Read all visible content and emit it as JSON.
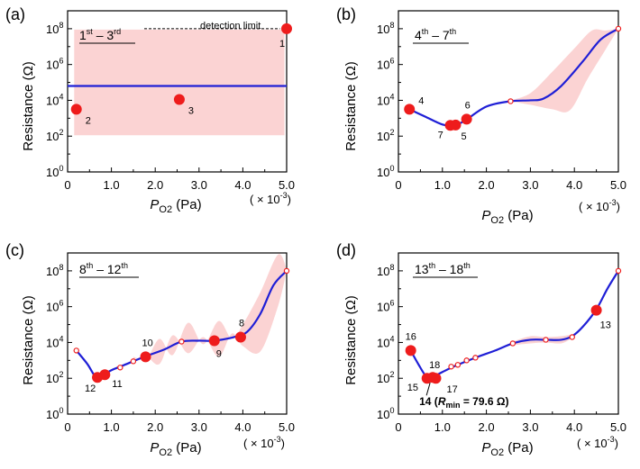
{
  "figure": {
    "ylabel_main": "Resistance (",
    "ylabel_omega": "Ω",
    "ylabel_close": ")",
    "xlabel_p": "P",
    "xlabel_sub": "O2",
    "xlabel_unit": " (Pa)",
    "xmult_prefix": "( × 10",
    "xmult_exp": "-3",
    "xmult_suffix": ")",
    "colors": {
      "curve": "#1f1fd6",
      "band": "#fbd3d3",
      "point": "#ee1c1c",
      "axis": "#000000"
    }
  },
  "chart_data": [
    {
      "type": "scatter",
      "panel": "(a)",
      "title_parts": [
        "1",
        "st",
        " – 3",
        "rd"
      ],
      "xlim": [
        0,
        5.0
      ],
      "ylim_log10": [
        0,
        9
      ],
      "xticks": [
        "0",
        "1.0",
        "2.0",
        "3.0",
        "4.0",
        "5.0"
      ],
      "yticks": [
        {
          "b": "10",
          "e": "0"
        },
        {
          "b": "10",
          "e": "2"
        },
        {
          "b": "10",
          "e": "4"
        },
        {
          "b": "10",
          "e": "6"
        },
        {
          "b": "10",
          "e": "8"
        }
      ],
      "curve": [
        [
          0,
          4.8
        ],
        [
          5.0,
          4.8
        ]
      ],
      "band_upper": [
        [
          0.15,
          7.95
        ],
        [
          4.95,
          7.95
        ]
      ],
      "band_lower": [
        [
          0.15,
          2.05
        ],
        [
          4.95,
          2.05
        ]
      ],
      "small_points": [],
      "points": [
        {
          "x": 0.2,
          "y": 3.5,
          "label": "2",
          "dx": 10,
          "dy": 16
        },
        {
          "x": 2.55,
          "y": 4.05,
          "label": "3",
          "dx": 10,
          "dy": 16
        },
        {
          "x": 5.0,
          "y": 8.0,
          "label": "1",
          "dx": -8,
          "dy": 20
        }
      ],
      "detection_limit": {
        "text": "detection limit",
        "y": 8.0,
        "x_from": 1.75,
        "x_to": 4.85
      }
    },
    {
      "type": "line",
      "panel": "(b)",
      "title_parts": [
        "4",
        "th",
        " – 7",
        "th"
      ],
      "xlim": [
        0,
        5.0
      ],
      "ylim_log10": [
        0,
        9
      ],
      "xticks": [
        "0",
        "1.0",
        "2.0",
        "3.0",
        "4.0",
        "5.0"
      ],
      "yticks": [
        {
          "b": "10",
          "e": "0"
        },
        {
          "b": "10",
          "e": "2"
        },
        {
          "b": "10",
          "e": "4"
        },
        {
          "b": "10",
          "e": "6"
        },
        {
          "b": "10",
          "e": "8"
        }
      ],
      "curve": [
        [
          0.25,
          3.5
        ],
        [
          0.6,
          3.1
        ],
        [
          1.0,
          2.65
        ],
        [
          1.25,
          2.6
        ],
        [
          1.5,
          2.85
        ],
        [
          2.0,
          3.65
        ],
        [
          2.55,
          3.95
        ],
        [
          3.0,
          4.0
        ],
        [
          3.3,
          4.1
        ],
        [
          3.7,
          4.8
        ],
        [
          4.2,
          6.2
        ],
        [
          4.6,
          7.4
        ],
        [
          5.0,
          8.0
        ]
      ],
      "band_upper": [
        [
          2.55,
          4.0
        ],
        [
          3.0,
          4.4
        ],
        [
          3.5,
          5.6
        ],
        [
          4.0,
          6.9
        ],
        [
          4.4,
          7.9
        ],
        [
          4.7,
          7.9
        ],
        [
          5.0,
          8.0
        ]
      ],
      "band_lower": [
        [
          2.55,
          3.95
        ],
        [
          3.0,
          3.75
        ],
        [
          3.5,
          3.5
        ],
        [
          3.9,
          3.45
        ],
        [
          4.3,
          5.2
        ],
        [
          4.7,
          6.8
        ],
        [
          5.0,
          8.0
        ]
      ],
      "small_points": [
        [
          2.55,
          3.95
        ],
        [
          5.0,
          8.0
        ]
      ],
      "points": [
        {
          "x": 0.25,
          "y": 3.5,
          "label": "4",
          "dx": 10,
          "dy": -6
        },
        {
          "x": 1.18,
          "y": 2.6,
          "label": "7",
          "dx": -14,
          "dy": 14
        },
        {
          "x": 1.3,
          "y": 2.62,
          "label": "5",
          "dx": 6,
          "dy": 16
        },
        {
          "x": 1.55,
          "y": 2.95,
          "label": "6",
          "dx": -2,
          "dy": -12
        }
      ]
    },
    {
      "type": "line",
      "panel": "(c)",
      "title_parts": [
        "8",
        "th",
        " – 12",
        "th"
      ],
      "xlim": [
        0,
        5.0
      ],
      "ylim_log10": [
        0,
        9
      ],
      "xticks": [
        "0",
        "1.0",
        "2.0",
        "3.0",
        "4.0",
        "5.0"
      ],
      "yticks": [
        {
          "b": "10",
          "e": "0"
        },
        {
          "b": "10",
          "e": "2"
        },
        {
          "b": "10",
          "e": "4"
        },
        {
          "b": "10",
          "e": "6"
        },
        {
          "b": "10",
          "e": "8"
        }
      ],
      "curve": [
        [
          0.2,
          3.55
        ],
        [
          0.45,
          2.8
        ],
        [
          0.65,
          2.05
        ],
        [
          0.8,
          2.15
        ],
        [
          1.0,
          2.45
        ],
        [
          1.3,
          2.75
        ],
        [
          1.75,
          3.2
        ],
        [
          2.2,
          3.6
        ],
        [
          2.6,
          4.05
        ],
        [
          3.0,
          4.1
        ],
        [
          3.35,
          4.1
        ],
        [
          3.8,
          4.3
        ],
        [
          4.1,
          4.6
        ],
        [
          4.4,
          5.6
        ],
        [
          4.7,
          7.2
        ],
        [
          5.0,
          8.0
        ]
      ],
      "band_upper": [
        [
          1.5,
          3.2
        ],
        [
          1.8,
          3.1
        ],
        [
          2.1,
          4.2
        ],
        [
          2.4,
          3.3
        ],
        [
          2.75,
          5.1
        ],
        [
          3.1,
          3.9
        ],
        [
          3.45,
          5.2
        ],
        [
          3.75,
          4.2
        ],
        [
          4.0,
          5.0
        ],
        [
          4.4,
          6.8
        ],
        [
          4.8,
          8.9
        ],
        [
          5.0,
          8.1
        ]
      ],
      "band_lower": [
        [
          1.5,
          3.05
        ],
        [
          1.8,
          3.2
        ],
        [
          2.1,
          2.8
        ],
        [
          2.4,
          4.4
        ],
        [
          2.75,
          3.4
        ],
        [
          3.1,
          4.3
        ],
        [
          3.45,
          3.2
        ],
        [
          3.75,
          4.5
        ],
        [
          4.0,
          3.8
        ],
        [
          4.4,
          3.5
        ],
        [
          4.8,
          6.0
        ],
        [
          5.0,
          8.0
        ]
      ],
      "small_points": [
        [
          0.2,
          3.55
        ],
        [
          1.2,
          2.6
        ],
        [
          1.5,
          2.95
        ],
        [
          2.6,
          4.05
        ],
        [
          5.0,
          8.0
        ]
      ],
      "points": [
        {
          "x": 0.68,
          "y": 2.05,
          "label": "12",
          "dx": -14,
          "dy": 16
        },
        {
          "x": 0.85,
          "y": 2.2,
          "label": "11",
          "dx": 8,
          "dy": 14
        },
        {
          "x": 1.78,
          "y": 3.2,
          "label": "10",
          "dx": -4,
          "dy": -12
        },
        {
          "x": 3.35,
          "y": 4.1,
          "label": "9",
          "dx": 2,
          "dy": 18
        },
        {
          "x": 3.95,
          "y": 4.3,
          "label": "8",
          "dx": -2,
          "dy": -12
        }
      ]
    },
    {
      "type": "line",
      "panel": "(d)",
      "title_parts": [
        "13",
        "th",
        " – 18",
        "th"
      ],
      "xlim": [
        0,
        5.0
      ],
      "ylim_log10": [
        0,
        9
      ],
      "xticks": [
        "0",
        "1.0",
        "2.0",
        "3.0",
        "4.0",
        "5.0"
      ],
      "yticks": [
        {
          "b": "10",
          "e": "0"
        },
        {
          "b": "10",
          "e": "2"
        },
        {
          "b": "10",
          "e": "4"
        },
        {
          "b": "10",
          "e": "6"
        },
        {
          "b": "10",
          "e": "8"
        }
      ],
      "curve": [
        [
          0.28,
          3.55
        ],
        [
          0.45,
          2.8
        ],
        [
          0.65,
          2.05
        ],
        [
          0.8,
          2.1
        ],
        [
          1.0,
          2.35
        ],
        [
          1.3,
          2.7
        ],
        [
          1.75,
          3.15
        ],
        [
          2.2,
          3.55
        ],
        [
          2.6,
          3.95
        ],
        [
          3.0,
          4.15
        ],
        [
          3.35,
          4.15
        ],
        [
          3.7,
          4.15
        ],
        [
          3.95,
          4.35
        ],
        [
          4.2,
          4.9
        ],
        [
          4.5,
          5.85
        ],
        [
          4.75,
          7.0
        ],
        [
          5.0,
          8.0
        ]
      ],
      "band_upper": [
        [
          2.6,
          4.05
        ],
        [
          3.0,
          4.35
        ],
        [
          3.35,
          4.3
        ],
        [
          3.7,
          4.35
        ],
        [
          3.95,
          4.45
        ]
      ],
      "band_lower": [
        [
          2.6,
          3.85
        ],
        [
          3.0,
          3.95
        ],
        [
          3.35,
          4.0
        ],
        [
          3.7,
          3.95
        ],
        [
          3.95,
          4.25
        ]
      ],
      "small_points": [
        [
          1.2,
          2.65
        ],
        [
          1.35,
          2.75
        ],
        [
          1.55,
          3.0
        ],
        [
          1.75,
          3.15
        ],
        [
          2.6,
          3.95
        ],
        [
          3.35,
          4.15
        ],
        [
          3.95,
          4.3
        ],
        [
          5.0,
          8.0
        ]
      ],
      "points": [
        {
          "x": 0.28,
          "y": 3.55,
          "label": "16",
          "dx": -6,
          "dy": -12
        },
        {
          "x": 0.65,
          "y": 2.0,
          "label": "15",
          "dx": -22,
          "dy": 14
        },
        {
          "x": 0.78,
          "y": 2.05,
          "label": "18",
          "dx": -4,
          "dy": -10
        },
        {
          "x": 0.85,
          "y": 2.0,
          "label": "17",
          "dx": 12,
          "dy": 16
        },
        {
          "x": 4.5,
          "y": 5.8,
          "label": "13",
          "dx": 4,
          "dy": 20
        }
      ],
      "annotation": {
        "num": "14 (",
        "r": "R",
        "sub": "min",
        "rest": " = 79.6 Ω)",
        "x": 0.72,
        "y": 2.0
      }
    }
  ]
}
